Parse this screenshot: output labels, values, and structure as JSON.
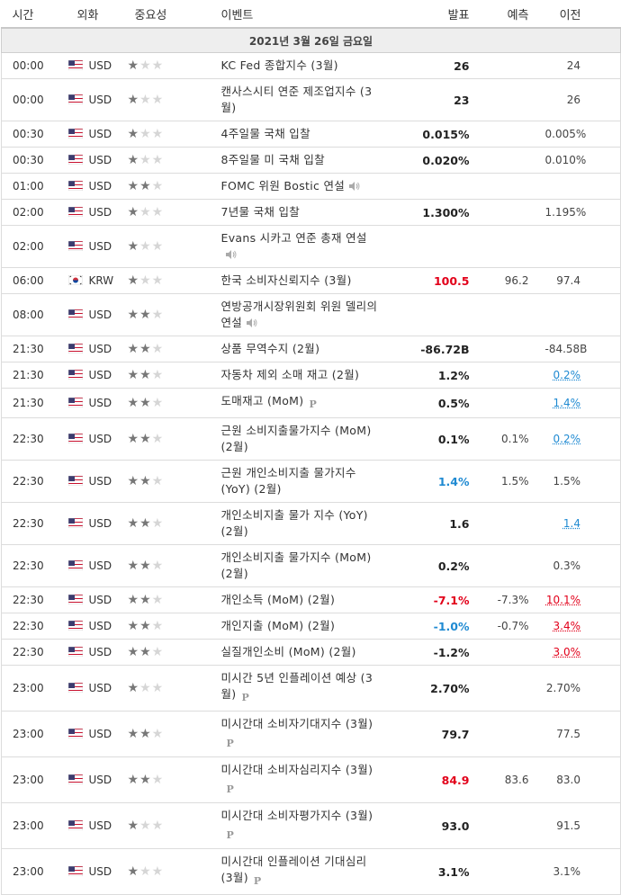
{
  "header": {
    "time": "시간",
    "currency": "외화",
    "importance": "중요성",
    "event": "이벤트",
    "actual": "발표",
    "forecast": "예측",
    "previous": "이전"
  },
  "date_label": "2021년 3월 26일 금요일",
  "icons": {
    "speech": "speaker-icon",
    "preliminary": "preliminary-p-icon",
    "flag_us": "us-flag-icon",
    "flag_kr": "kr-flag-icon",
    "star": "star-icon"
  },
  "colors": {
    "actual_up": "#e2001a",
    "actual_down": "#1f8ad2",
    "star_on": "#777777",
    "star_off": "#d6d6d6"
  },
  "events": [
    {
      "time": "00:00",
      "currency": "USD",
      "flag": "us",
      "importance": 1,
      "event": "KC Fed 종합지수 (3월)",
      "actual": "26",
      "actual_trend": "",
      "forecast": "",
      "previous": "24",
      "previous_rev": "",
      "speech": false,
      "p": false,
      "h": 26
    },
    {
      "time": "00:00",
      "currency": "USD",
      "flag": "us",
      "importance": 1,
      "event": "캔사스시티 연준 제조업지수 (3월)",
      "actual": "23",
      "actual_trend": "",
      "forecast": "",
      "previous": "26",
      "previous_rev": "",
      "speech": false,
      "p": false,
      "h": 44
    },
    {
      "time": "00:30",
      "currency": "USD",
      "flag": "us",
      "importance": 1,
      "event": "4주일물 국채 입찰",
      "actual": "0.015%",
      "actual_trend": "",
      "forecast": "",
      "previous": "0.005%",
      "previous_rev": "",
      "speech": false,
      "p": false,
      "h": 27
    },
    {
      "time": "00:30",
      "currency": "USD",
      "flag": "us",
      "importance": 1,
      "event": "8주일물 미 국채 입찰",
      "actual": "0.020%",
      "actual_trend": "",
      "forecast": "",
      "previous": "0.010%",
      "previous_rev": "",
      "speech": false,
      "p": false,
      "h": 27
    },
    {
      "time": "01:00",
      "currency": "USD",
      "flag": "us",
      "importance": 2,
      "event": "FOMC 위원 Bostic 연설",
      "actual": "",
      "actual_trend": "",
      "forecast": "",
      "previous": "",
      "previous_rev": "",
      "speech": true,
      "p": false,
      "h": 27
    },
    {
      "time": "02:00",
      "currency": "USD",
      "flag": "us",
      "importance": 1,
      "event": "7년물 국채 입찰",
      "actual": "1.300%",
      "actual_trend": "",
      "forecast": "",
      "previous": "1.195%",
      "previous_rev": "",
      "speech": false,
      "p": false,
      "h": 27
    },
    {
      "time": "02:00",
      "currency": "USD",
      "flag": "us",
      "importance": 1,
      "event": "Evans 시카고 연준 총재 연설",
      "actual": "",
      "actual_trend": "",
      "forecast": "",
      "previous": "",
      "previous_rev": "",
      "speech": true,
      "p": false,
      "h": 44
    },
    {
      "time": "06:00",
      "currency": "KRW",
      "flag": "kr",
      "importance": 1,
      "event": "한국 소비자신뢰지수 (3월)",
      "actual": "100.5",
      "actual_trend": "up",
      "forecast": "96.2",
      "previous": "97.4",
      "previous_rev": "",
      "speech": false,
      "p": false,
      "h": 27
    },
    {
      "time": "08:00",
      "currency": "USD",
      "flag": "us",
      "importance": 2,
      "event": "연방공개시장위원회 위원 델리의 연설",
      "actual": "",
      "actual_trend": "",
      "forecast": "",
      "previous": "",
      "previous_rev": "",
      "speech": true,
      "p": false,
      "h": 44
    },
    {
      "time": "21:30",
      "currency": "USD",
      "flag": "us",
      "importance": 2,
      "event": "상품 무역수지 (2월)",
      "actual": "-86.72B",
      "actual_trend": "",
      "forecast": "",
      "previous": "-84.58B",
      "previous_rev": "",
      "speech": false,
      "p": false,
      "h": 27
    },
    {
      "time": "21:30",
      "currency": "USD",
      "flag": "us",
      "importance": 2,
      "event": "자동차 제외 소매 재고 (2월)",
      "actual": "1.2%",
      "actual_trend": "",
      "forecast": "",
      "previous": "0.2%",
      "previous_rev": "down",
      "speech": false,
      "p": false,
      "h": 27
    },
    {
      "time": "21:30",
      "currency": "USD",
      "flag": "us",
      "importance": 2,
      "event": "도매재고 (MoM)",
      "actual": "0.5%",
      "actual_trend": "",
      "forecast": "",
      "previous": "1.4%",
      "previous_rev": "down",
      "speech": false,
      "p": true,
      "h": 27
    },
    {
      "time": "22:30",
      "currency": "USD",
      "flag": "us",
      "importance": 2,
      "event": "근원 소비지출물가지수 (MoM) (2월)",
      "actual": "0.1%",
      "actual_trend": "",
      "forecast": "0.1%",
      "previous": "0.2%",
      "previous_rev": "down",
      "speech": false,
      "p": false,
      "h": 44
    },
    {
      "time": "22:30",
      "currency": "USD",
      "flag": "us",
      "importance": 2,
      "event": "근원 개인소비지출 물가지수 (YoY) (2월)",
      "actual": "1.4%",
      "actual_trend": "down",
      "forecast": "1.5%",
      "previous": "1.5%",
      "previous_rev": "",
      "speech": false,
      "p": false,
      "h": 44
    },
    {
      "time": "22:30",
      "currency": "USD",
      "flag": "us",
      "importance": 2,
      "event": "개인소비지출 물가 지수 (YoY) (2월)",
      "actual": "1.6",
      "actual_trend": "",
      "forecast": "",
      "previous": "1.4",
      "previous_rev": "down",
      "speech": false,
      "p": false,
      "h": 44
    },
    {
      "time": "22:30",
      "currency": "USD",
      "flag": "us",
      "importance": 2,
      "event": "개인소비지출 물가지수 (MoM) (2월)",
      "actual": "0.2%",
      "actual_trend": "",
      "forecast": "",
      "previous": "0.3%",
      "previous_rev": "",
      "speech": false,
      "p": false,
      "h": 44
    },
    {
      "time": "22:30",
      "currency": "USD",
      "flag": "us",
      "importance": 2,
      "event": "개인소득 (MoM) (2월)",
      "actual": "-7.1%",
      "actual_trend": "up",
      "forecast": "-7.3%",
      "previous": "10.1%",
      "previous_rev": "up",
      "speech": false,
      "p": false,
      "h": 27
    },
    {
      "time": "22:30",
      "currency": "USD",
      "flag": "us",
      "importance": 2,
      "event": "개인지출 (MoM) (2월)",
      "actual": "-1.0%",
      "actual_trend": "down",
      "forecast": "-0.7%",
      "previous": "3.4%",
      "previous_rev": "up",
      "speech": false,
      "p": false,
      "h": 27
    },
    {
      "time": "22:30",
      "currency": "USD",
      "flag": "us",
      "importance": 2,
      "event": "실질개인소비 (MoM) (2월)",
      "actual": "-1.2%",
      "actual_trend": "",
      "forecast": "",
      "previous": "3.0%",
      "previous_rev": "up",
      "speech": false,
      "p": false,
      "h": 27
    },
    {
      "time": "23:00",
      "currency": "USD",
      "flag": "us",
      "importance": 1,
      "event": "미시간 5년 인플레이션 예상 (3월)",
      "actual": "2.70%",
      "actual_trend": "",
      "forecast": "",
      "previous": "2.70%",
      "previous_rev": "",
      "speech": false,
      "p": true,
      "h": 44
    },
    {
      "time": "23:00",
      "currency": "USD",
      "flag": "us",
      "importance": 2,
      "event": "미시간대 소비자기대지수 (3월)",
      "actual": "79.7",
      "actual_trend": "",
      "forecast": "",
      "previous": "77.5",
      "previous_rev": "",
      "speech": false,
      "p": true,
      "h": 44
    },
    {
      "time": "23:00",
      "currency": "USD",
      "flag": "us",
      "importance": 2,
      "event": "미시간대 소비자심리지수 (3월)",
      "actual": "84.9",
      "actual_trend": "up",
      "forecast": "83.6",
      "previous": "83.0",
      "previous_rev": "",
      "speech": false,
      "p": true,
      "h": 44
    },
    {
      "time": "23:00",
      "currency": "USD",
      "flag": "us",
      "importance": 1,
      "event": "미시간대 소비자평가지수 (3월)",
      "actual": "93.0",
      "actual_trend": "",
      "forecast": "",
      "previous": "91.5",
      "previous_rev": "",
      "speech": false,
      "p": true,
      "h": 44
    },
    {
      "time": "23:00",
      "currency": "USD",
      "flag": "us",
      "importance": 1,
      "event": "미시간대 인플레이션 기대심리 (3월)",
      "actual": "3.1%",
      "actual_trend": "",
      "forecast": "",
      "previous": "3.1%",
      "previous_rev": "",
      "speech": false,
      "p": true,
      "h": 44
    }
  ]
}
